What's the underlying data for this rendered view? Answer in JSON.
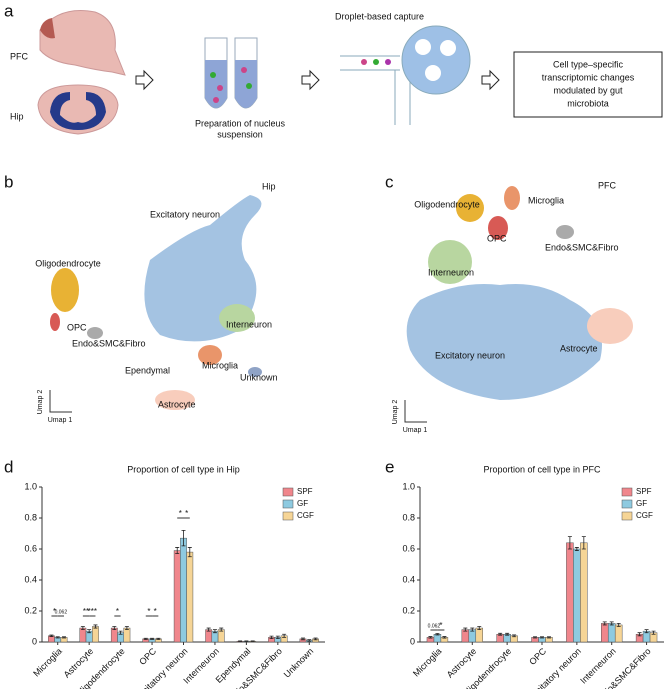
{
  "panel_labels": [
    "a",
    "b",
    "c",
    "d",
    "e"
  ],
  "workflow": {
    "regions": [
      "PFC",
      "Hip"
    ],
    "prep": [
      "Preparation of  nucleus",
      "suspension"
    ],
    "capture": "Droplet-based capture",
    "result": [
      "Cell type–specific",
      "transcriptomic changes",
      "modulated by gut",
      "microbiota"
    ]
  },
  "umaps": [
    {
      "region": "Hip",
      "clusters": [
        "Excitatory neuron",
        "Oligodendrocyte",
        "OPC",
        "Endo&SMC&Fibro",
        "Interneuron",
        "Microglia",
        "Ependymal",
        "Unknown",
        "Astrocyte"
      ],
      "axis_labels": [
        "Umap 2",
        "Umap 1"
      ]
    },
    {
      "region": "PFC",
      "clusters": [
        "Oligodendrocyte",
        "Microglia",
        "OPC",
        "Endo&SMC&Fibro",
        "Interneuron",
        "Astrocyte",
        "Excitatory neuron"
      ],
      "axis_labels": [
        "Umap 2",
        "Umap 1"
      ]
    }
  ],
  "chart_data": [
    {
      "type": "bar",
      "title": "Proportion of cell type in Hip",
      "categories": [
        "Microglia",
        "Astrocyte",
        "Oligodendrocyte",
        "OPC",
        "Excitatory neuron",
        "Interneuron",
        "Ependymal",
        "Endo&SMC&Fibro",
        "Unknown"
      ],
      "series": [
        {
          "name": "SPF",
          "color": "#f0868c",
          "values": [
            0.04,
            0.09,
            0.09,
            0.02,
            0.59,
            0.08,
            0.005,
            0.03,
            0.02
          ],
          "errors": [
            0.005,
            0.01,
            0.01,
            0.004,
            0.02,
            0.01,
            0.002,
            0.008,
            0.006
          ]
        },
        {
          "name": "GF",
          "color": "#8ecae0",
          "values": [
            0.03,
            0.07,
            0.06,
            0.02,
            0.67,
            0.07,
            0.005,
            0.03,
            0.01
          ],
          "errors": [
            0.004,
            0.01,
            0.01,
            0.004,
            0.05,
            0.01,
            0.002,
            0.008,
            0.005
          ]
        },
        {
          "name": "CGF",
          "color": "#f6d596",
          "values": [
            0.03,
            0.1,
            0.09,
            0.02,
            0.58,
            0.08,
            0.005,
            0.04,
            0.02
          ],
          "errors": [
            0.004,
            0.01,
            0.01,
            0.004,
            0.03,
            0.01,
            0.002,
            0.01,
            0.006
          ]
        }
      ],
      "annotations": [
        "*",
        "0.062",
        "**",
        "***",
        "*",
        "*",
        "*",
        "*",
        "*"
      ],
      "ylim": [
        0,
        1
      ],
      "yticks": [
        0,
        0.2,
        0.4,
        0.6,
        0.8,
        {
          "value": 1,
          "label": "1.0"
        }
      ],
      "legend": "upper right"
    },
    {
      "type": "bar",
      "title": "Proportion of cell type in PFC",
      "categories": [
        "Microglia",
        "Astrocyte",
        "Oligodendrocyte",
        "OPC",
        "Excitatory neuron",
        "Interneuron",
        "Endo&SMC&Fibro"
      ],
      "series": [
        {
          "name": "SPF",
          "color": "#f0868c",
          "values": [
            0.03,
            0.08,
            0.05,
            0.03,
            0.64,
            0.12,
            0.05
          ],
          "errors": [
            0.005,
            0.01,
            0.006,
            0.004,
            0.04,
            0.01,
            0.01
          ]
        },
        {
          "name": "GF",
          "color": "#8ecae0",
          "values": [
            0.05,
            0.08,
            0.05,
            0.03,
            0.6,
            0.12,
            0.07
          ],
          "errors": [
            0.005,
            0.01,
            0.006,
            0.004,
            0.01,
            0.01,
            0.01
          ]
        },
        {
          "name": "CGF",
          "color": "#f6d596",
          "values": [
            0.03,
            0.09,
            0.04,
            0.03,
            0.64,
            0.11,
            0.06
          ],
          "errors": [
            0.005,
            0.01,
            0.006,
            0.004,
            0.04,
            0.01,
            0.01
          ]
        }
      ],
      "annotations": [
        "0.062",
        "*"
      ],
      "ylim": [
        0,
        1
      ],
      "yticks": [
        0,
        0.2,
        0.4,
        0.6,
        0.8,
        {
          "value": 1,
          "label": "1.0"
        }
      ],
      "legend": "upper right"
    }
  ]
}
